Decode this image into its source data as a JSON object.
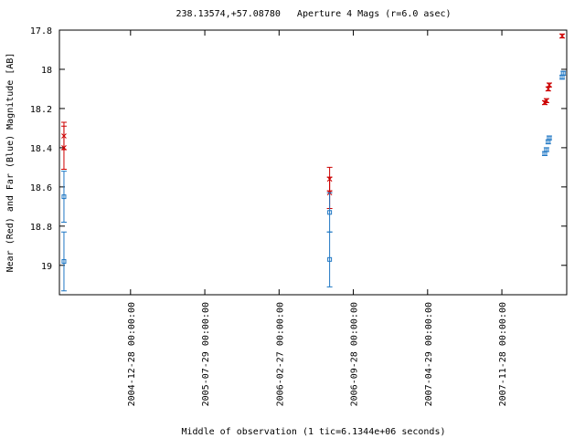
{
  "chart_data": {
    "type": "errorbar",
    "title": "238.13574,+57.08780   Aperture 4 Mags (r=6.0 asec)",
    "x_label": "Middle of observation (1 tic=6.1344e+06 seconds)",
    "y_label": "Near (Red) and Far (Blue) Magnitude [AB]",
    "xlim": [
      "2004-06-07",
      "2008-06-01"
    ],
    "xticks": [
      "2004-12-28 00:00:00",
      "2005-07-29 00:00:00",
      "2006-02-27 00:00:00",
      "2006-09-28 00:00:00",
      "2007-04-29 00:00:00",
      "2007-11-28 00:00:00"
    ],
    "ylim": [
      17.8,
      19.15
    ],
    "y_reversed": true,
    "yticks": [
      17.8,
      18,
      18.2,
      18.4,
      18.6,
      18.8,
      19
    ],
    "series": [
      {
        "color": "#cc0000",
        "marker": "x",
        "x": [
          "2004-06-20",
          "2004-06-20",
          "2006-07-22",
          "2006-07-22",
          "2008-03-30",
          "2008-04-04",
          "2008-04-09",
          "2008-04-12",
          "2008-05-19"
        ],
        "values": [
          18.34,
          18.4,
          18.56,
          18.63,
          18.17,
          18.16,
          18.1,
          18.08,
          17.83
        ],
        "errors": [
          0.07,
          0.11,
          0.06,
          0.08,
          0.01,
          0.01,
          0.01,
          0.01,
          0.01
        ]
      },
      {
        "color": "#1f77c4",
        "marker": "square",
        "x": [
          "2004-06-20",
          "2004-06-20",
          "2006-07-22",
          "2006-07-22",
          "2008-03-30",
          "2008-04-04",
          "2008-04-09",
          "2008-04-12",
          "2008-05-19",
          "2008-05-22"
        ],
        "values": [
          18.65,
          18.98,
          18.73,
          18.97,
          18.43,
          18.41,
          18.37,
          18.35,
          18.04,
          18.02
        ],
        "errors": [
          0.13,
          0.15,
          0.1,
          0.14,
          0.01,
          0.01,
          0.01,
          0.01,
          0.01,
          0.01
        ]
      }
    ]
  }
}
